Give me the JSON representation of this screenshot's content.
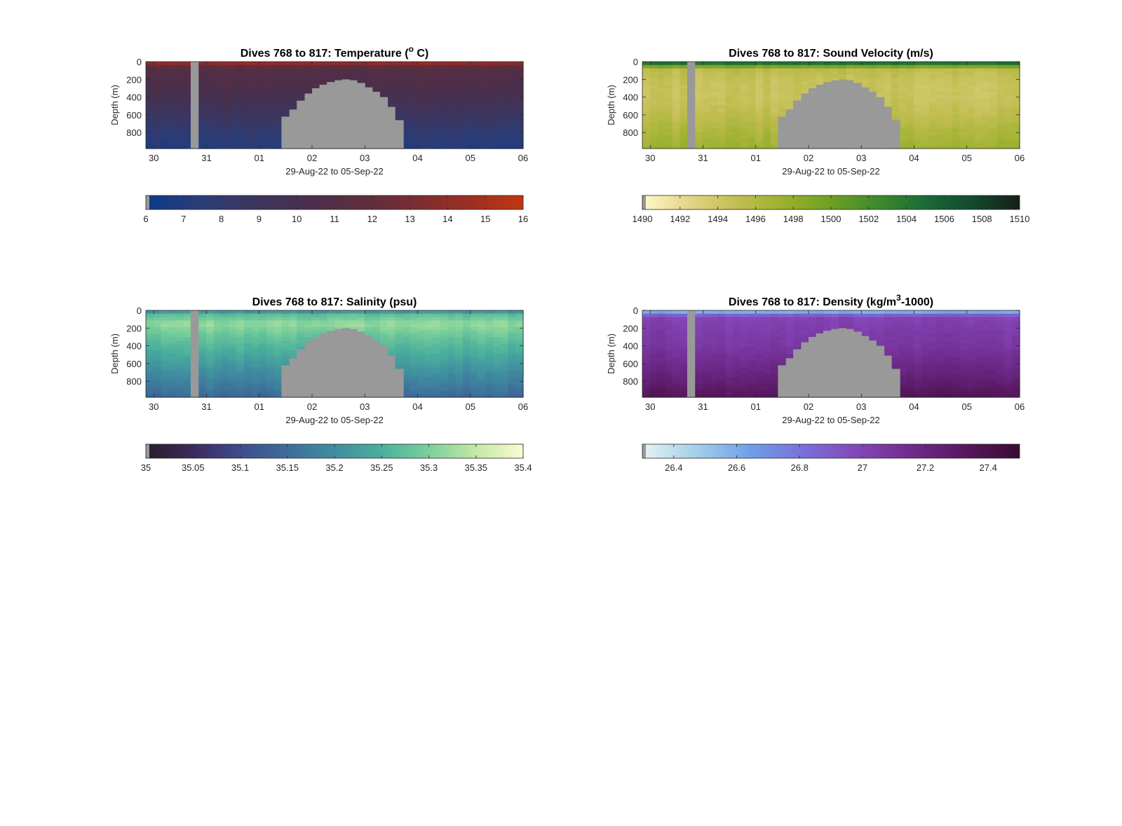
{
  "chart_data": [
    {
      "type": "heatmap",
      "variable": "temperature",
      "title": "Dives 768 to 817: Temperature (",
      "title_sup": "o",
      "title_end": " C)",
      "xlabel": "29-Aug-22 to 05-Sep-22",
      "ylabel": "Depth (m)",
      "x_ticks": [
        "30",
        "31",
        "01",
        "02",
        "03",
        "04",
        "05",
        "06"
      ],
      "x_range_days": [
        29.85,
        37.0
      ],
      "y_ticks": [
        "0",
        "200",
        "400",
        "600",
        "800"
      ],
      "y_range": [
        0,
        980
      ],
      "y_reversed": true,
      "no_data_intervals": [
        {
          "x": [
            30.7,
            30.85
          ],
          "depth": [
            0,
            980
          ]
        }
      ],
      "no_data_mound": [
        {
          "x": 32.42,
          "top_depth": 620
        },
        {
          "x": 32.57,
          "top_depth": 540
        },
        {
          "x": 32.71,
          "top_depth": 440
        },
        {
          "x": 32.86,
          "top_depth": 360
        },
        {
          "x": 33.0,
          "top_depth": 300
        },
        {
          "x": 33.14,
          "top_depth": 260
        },
        {
          "x": 33.28,
          "top_depth": 230
        },
        {
          "x": 33.43,
          "top_depth": 210
        },
        {
          "x": 33.57,
          "top_depth": 200
        },
        {
          "x": 33.71,
          "top_depth": 210
        },
        {
          "x": 33.85,
          "top_depth": 240
        },
        {
          "x": 34.0,
          "top_depth": 290
        },
        {
          "x": 34.14,
          "top_depth": 340
        },
        {
          "x": 34.28,
          "top_depth": 400
        },
        {
          "x": 34.43,
          "top_depth": 510
        },
        {
          "x": 34.57,
          "top_depth": 660
        },
        {
          "x": 34.72,
          "top_depth": 660
        }
      ],
      "mound_x_end": 34.73,
      "colorbar": {
        "range": [
          6,
          16
        ],
        "ticks": [
          "6",
          "7",
          "8",
          "9",
          "10",
          "11",
          "12",
          "13",
          "14",
          "15",
          "16"
        ],
        "colors": [
          "#0b3a8a",
          "#2b3d78",
          "#3c355e",
          "#4a2f4c",
          "#5c2d3e",
          "#7a2d32",
          "#9c2e22",
          "#c23612"
        ]
      },
      "profile": [
        [
          0,
          15.5
        ],
        [
          40,
          12.2
        ],
        [
          100,
          11.0
        ],
        [
          250,
          10.6
        ],
        [
          500,
          9.4
        ],
        [
          700,
          8.3
        ],
        [
          850,
          7.6
        ],
        [
          980,
          7.0
        ]
      ]
    },
    {
      "type": "heatmap",
      "variable": "sound_velocity",
      "title": "Dives 768 to 817: Sound Velocity (m/s)",
      "xlabel": "29-Aug-22 to 05-Sep-22",
      "ylabel": "Depth (m)",
      "x_ticks": [
        "30",
        "31",
        "01",
        "02",
        "03",
        "04",
        "05",
        "06"
      ],
      "x_range_days": [
        29.85,
        37.0
      ],
      "y_ticks": [
        "0",
        "200",
        "400",
        "600",
        "800"
      ],
      "y_range": [
        0,
        980
      ],
      "y_reversed": true,
      "no_data_intervals": [
        {
          "x": [
            30.7,
            30.85
          ],
          "depth": [
            0,
            980
          ]
        }
      ],
      "no_data_mound": [
        {
          "x": 32.42,
          "top_depth": 620
        },
        {
          "x": 32.57,
          "top_depth": 540
        },
        {
          "x": 32.71,
          "top_depth": 440
        },
        {
          "x": 32.86,
          "top_depth": 360
        },
        {
          "x": 33.0,
          "top_depth": 300
        },
        {
          "x": 33.14,
          "top_depth": 260
        },
        {
          "x": 33.28,
          "top_depth": 230
        },
        {
          "x": 33.43,
          "top_depth": 210
        },
        {
          "x": 33.57,
          "top_depth": 200
        },
        {
          "x": 33.71,
          "top_depth": 210
        },
        {
          "x": 33.85,
          "top_depth": 240
        },
        {
          "x": 34.0,
          "top_depth": 290
        },
        {
          "x": 34.14,
          "top_depth": 340
        },
        {
          "x": 34.28,
          "top_depth": 400
        },
        {
          "x": 34.43,
          "top_depth": 510
        },
        {
          "x": 34.57,
          "top_depth": 660
        },
        {
          "x": 34.72,
          "top_depth": 660
        }
      ],
      "mound_x_end": 34.73,
      "colorbar": {
        "range": [
          1490,
          1510
        ],
        "ticks": [
          "1490",
          "1492",
          "1494",
          "1496",
          "1498",
          "1500",
          "1502",
          "1504",
          "1506",
          "1508",
          "1510"
        ],
        "colors": [
          "#fdf9c9",
          "#e2d488",
          "#c2be52",
          "#9bb02e",
          "#6f9f22",
          "#3e8a2c",
          "#1a6a36",
          "#134a2f",
          "#141f16"
        ]
      },
      "profile": [
        [
          0,
          1506.0
        ],
        [
          30,
          1503.5
        ],
        [
          80,
          1495.5
        ],
        [
          200,
          1494.6
        ],
        [
          400,
          1494.4
        ],
        [
          600,
          1495.2
        ],
        [
          800,
          1496.4
        ],
        [
          980,
          1497.3
        ]
      ]
    },
    {
      "type": "heatmap",
      "variable": "salinity",
      "title": "Dives 768 to 817: Salinity (psu)",
      "xlabel": "29-Aug-22 to 05-Sep-22",
      "ylabel": "Depth (m)",
      "x_ticks": [
        "30",
        "31",
        "01",
        "02",
        "03",
        "04",
        "05",
        "06"
      ],
      "x_range_days": [
        29.85,
        37.0
      ],
      "y_ticks": [
        "0",
        "200",
        "400",
        "600",
        "800"
      ],
      "y_range": [
        0,
        980
      ],
      "y_reversed": true,
      "no_data_intervals": [
        {
          "x": [
            30.7,
            30.85
          ],
          "depth": [
            0,
            980
          ]
        }
      ],
      "no_data_mound": [
        {
          "x": 32.42,
          "top_depth": 620
        },
        {
          "x": 32.57,
          "top_depth": 540
        },
        {
          "x": 32.71,
          "top_depth": 440
        },
        {
          "x": 32.86,
          "top_depth": 360
        },
        {
          "x": 33.0,
          "top_depth": 300
        },
        {
          "x": 33.14,
          "top_depth": 260
        },
        {
          "x": 33.28,
          "top_depth": 230
        },
        {
          "x": 33.43,
          "top_depth": 210
        },
        {
          "x": 33.57,
          "top_depth": 200
        },
        {
          "x": 33.71,
          "top_depth": 210
        },
        {
          "x": 33.85,
          "top_depth": 240
        },
        {
          "x": 34.0,
          "top_depth": 290
        },
        {
          "x": 34.14,
          "top_depth": 340
        },
        {
          "x": 34.28,
          "top_depth": 400
        },
        {
          "x": 34.43,
          "top_depth": 510
        },
        {
          "x": 34.57,
          "top_depth": 660
        },
        {
          "x": 34.72,
          "top_depth": 660
        }
      ],
      "mound_x_end": 34.73,
      "colorbar": {
        "range": [
          35,
          35.4
        ],
        "ticks": [
          "35",
          "35.05",
          "35.1",
          "35.15",
          "35.2",
          "35.25",
          "35.3",
          "35.35",
          "35.4"
        ],
        "colors": [
          "#2a1c2c",
          "#3b2a5c",
          "#3f4b8e",
          "#3e6e9a",
          "#3f8ea0",
          "#4bb09c",
          "#7acf9a",
          "#c4e8a6",
          "#fbfad2"
        ]
      },
      "profile": [
        [
          0,
          35.14
        ],
        [
          30,
          35.26
        ],
        [
          150,
          35.32
        ],
        [
          300,
          35.28
        ],
        [
          500,
          35.24
        ],
        [
          700,
          35.2
        ],
        [
          850,
          35.17
        ],
        [
          980,
          35.14
        ]
      ]
    },
    {
      "type": "heatmap",
      "variable": "density",
      "title": "Dives 768 to 817: Density (kg/m",
      "title_sup": "3",
      "title_end": "-1000)",
      "xlabel": "29-Aug-22 to 05-Sep-22",
      "ylabel": "Depth (m)",
      "x_ticks": [
        "30",
        "31",
        "01",
        "02",
        "03",
        "04",
        "05",
        "06"
      ],
      "x_range_days": [
        29.85,
        37.0
      ],
      "y_ticks": [
        "0",
        "200",
        "400",
        "600",
        "800"
      ],
      "y_range": [
        0,
        980
      ],
      "y_reversed": true,
      "no_data_intervals": [
        {
          "x": [
            30.7,
            30.85
          ],
          "depth": [
            0,
            980
          ]
        }
      ],
      "no_data_mound": [
        {
          "x": 32.42,
          "top_depth": 620
        },
        {
          "x": 32.57,
          "top_depth": 540
        },
        {
          "x": 32.71,
          "top_depth": 440
        },
        {
          "x": 32.86,
          "top_depth": 360
        },
        {
          "x": 33.0,
          "top_depth": 300
        },
        {
          "x": 33.14,
          "top_depth": 260
        },
        {
          "x": 33.28,
          "top_depth": 230
        },
        {
          "x": 33.43,
          "top_depth": 210
        },
        {
          "x": 33.57,
          "top_depth": 200
        },
        {
          "x": 33.71,
          "top_depth": 210
        },
        {
          "x": 33.85,
          "top_depth": 240
        },
        {
          "x": 34.0,
          "top_depth": 290
        },
        {
          "x": 34.14,
          "top_depth": 340
        },
        {
          "x": 34.28,
          "top_depth": 400
        },
        {
          "x": 34.43,
          "top_depth": 510
        },
        {
          "x": 34.57,
          "top_depth": 660
        },
        {
          "x": 34.72,
          "top_depth": 660
        }
      ],
      "mound_x_end": 34.73,
      "colorbar": {
        "range": [
          26.3,
          27.5
        ],
        "ticks": [
          "26.4",
          "26.6",
          "26.8",
          "27",
          "27.2",
          "27.4"
        ],
        "colors": [
          "#e6f2f3",
          "#a3cfe8",
          "#6f9fe8",
          "#7a6fdb",
          "#8446b8",
          "#6f2a8c",
          "#56185e",
          "#3a0b33"
        ]
      },
      "profile": [
        [
          0,
          26.35
        ],
        [
          30,
          26.75
        ],
        [
          80,
          27.0
        ],
        [
          200,
          27.04
        ],
        [
          400,
          27.08
        ],
        [
          600,
          27.16
        ],
        [
          800,
          27.25
        ],
        [
          980,
          27.36
        ]
      ]
    }
  ]
}
